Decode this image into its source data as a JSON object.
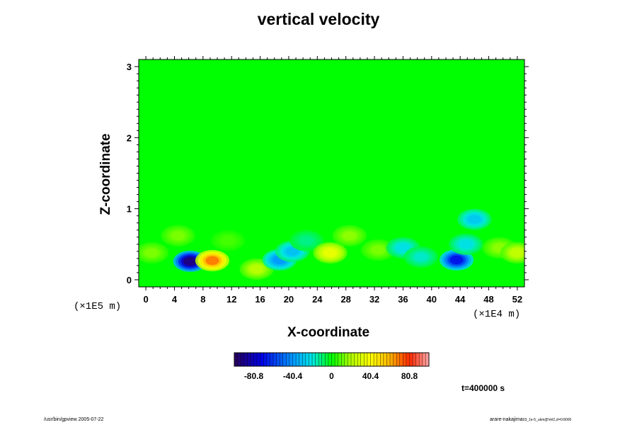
{
  "chart_data": {
    "type": "heatmap",
    "title": "vertical velocity",
    "xlabel": "X-coordinate",
    "ylabel": "Z-coordinate",
    "x_unit": "(×1E4 m)",
    "y_unit": "(×1E5 m)",
    "xlim": [
      -1,
      53
    ],
    "ylim": [
      -0.1,
      3.1
    ],
    "x_ticks": [
      "0",
      "4",
      "8",
      "12",
      "16",
      "20",
      "24",
      "28",
      "32",
      "36",
      "40",
      "44",
      "48",
      "52"
    ],
    "y_ticks": [
      "0",
      "1",
      "2",
      "3"
    ],
    "colorbar": {
      "range": [
        -101,
        101
      ],
      "tick_labels": [
        "-80.8",
        "-40.4",
        "0",
        "40.4",
        "80.8"
      ],
      "tick_values": [
        -80.8,
        -40.4,
        0,
        40.4,
        80.8
      ]
    },
    "time_label": "t=400000 s",
    "background_value": 0,
    "features": [
      {
        "x": 0.8,
        "z": 0.38,
        "w": 14
      },
      {
        "x": 6.2,
        "z": 0.26,
        "w": -95
      },
      {
        "x": 9.3,
        "z": 0.27,
        "w": 70
      },
      {
        "x": 4.5,
        "z": 0.62,
        "w": 14
      },
      {
        "x": 11.5,
        "z": 0.55,
        "w": 8
      },
      {
        "x": 15.5,
        "z": 0.15,
        "w": 22
      },
      {
        "x": 18.7,
        "z": 0.28,
        "w": -40
      },
      {
        "x": 20.5,
        "z": 0.4,
        "w": -30
      },
      {
        "x": 22.5,
        "z": 0.55,
        "w": -12
      },
      {
        "x": 25.8,
        "z": 0.38,
        "w": 35
      },
      {
        "x": 28.5,
        "z": 0.62,
        "w": 16
      },
      {
        "x": 32.5,
        "z": 0.42,
        "w": 14
      },
      {
        "x": 36.0,
        "z": 0.45,
        "w": -22
      },
      {
        "x": 38.5,
        "z": 0.32,
        "w": -18
      },
      {
        "x": 43.5,
        "z": 0.28,
        "w": -70
      },
      {
        "x": 44.8,
        "z": 0.5,
        "w": -22
      },
      {
        "x": 46.0,
        "z": 0.85,
        "w": -28
      },
      {
        "x": 49.5,
        "z": 0.45,
        "w": 16
      },
      {
        "x": 52.0,
        "z": 0.38,
        "w": 24
      }
    ]
  },
  "footer": {
    "left": "/usr/bin/gpview 2005-07-22",
    "right_main": "arare-nakajima",
    "right_sub": "03_1e-5_ukm@Vel2,zl=0:8000"
  }
}
